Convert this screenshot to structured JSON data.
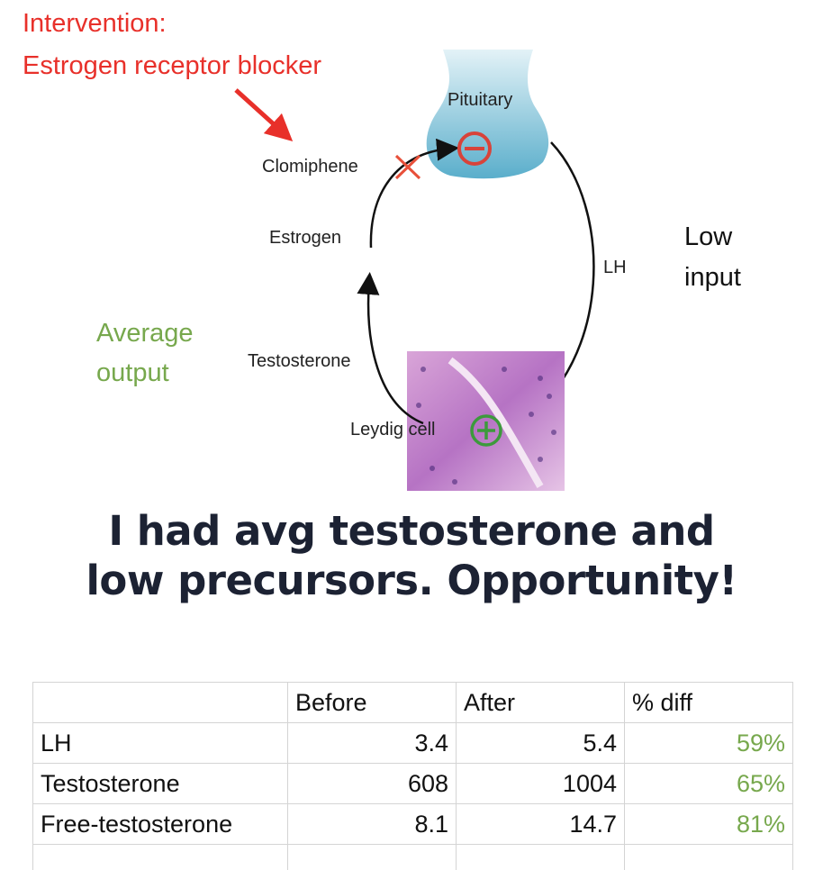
{
  "intervention": {
    "line1": "Intervention:",
    "line2": "Estrogen receptor blocker"
  },
  "diagram": {
    "pituitary": "Pituitary",
    "clomiphene": "Clomiphene",
    "estrogen": "Estrogen",
    "lh": "LH",
    "testosterone": "Testosterone",
    "leydig": "Leydig cell"
  },
  "annotations": {
    "low_input_1": "Low",
    "low_input_2": "input",
    "avg_output_1": "Average",
    "avg_output_2": "output"
  },
  "heading": {
    "line1": "I had avg testosterone and",
    "line2": "low precursors. Opportunity!"
  },
  "table": {
    "headers": [
      "",
      "Before",
      "After",
      "% diff"
    ],
    "rows": [
      [
        "LH",
        "3.4",
        "5.4",
        "59%"
      ],
      [
        "Testosterone",
        "608",
        "1004",
        "65%"
      ],
      [
        "Free-testosterone",
        "8.1",
        "14.7",
        "81%"
      ]
    ]
  },
  "colors": {
    "red": "#e8302a",
    "green": "#77a84d",
    "heading": "#1c2233"
  }
}
